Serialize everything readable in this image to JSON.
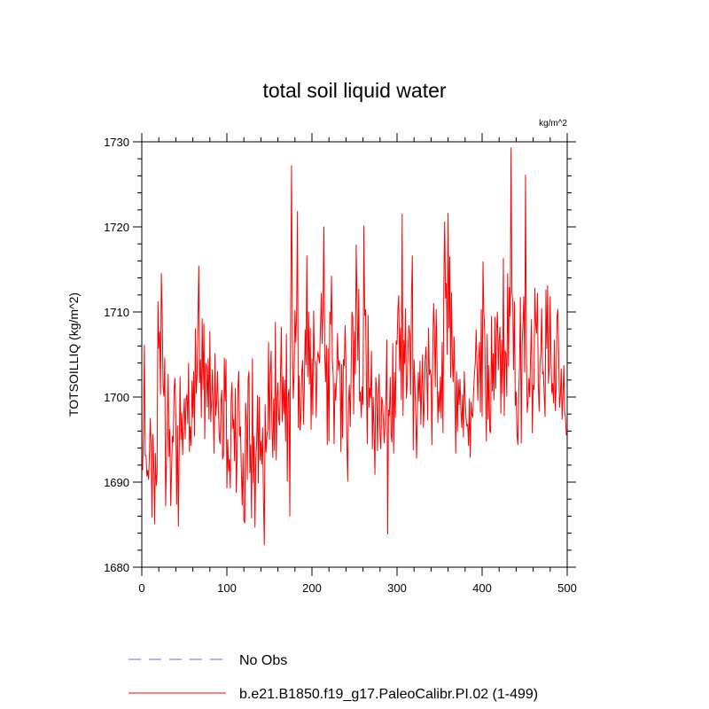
{
  "chart_data": {
    "type": "line",
    "title": "total soil liquid water",
    "units": "kg/m^2",
    "xlabel": "",
    "ylabel": "TOTSOILLIQ  (kg/m^2)",
    "xlim": [
      0,
      500
    ],
    "ylim": [
      1680,
      1730
    ],
    "x_ticks": [
      0,
      100,
      200,
      300,
      400,
      500
    ],
    "y_ticks": [
      1680,
      1690,
      1700,
      1710,
      1720,
      1730
    ],
    "grid": false,
    "series": [
      {
        "name": "No Obs",
        "color": "#6666ff",
        "style": "dashed",
        "x_start": 1,
        "values": []
      },
      {
        "name": "b.e21.B1850.f19_g17.PaleoCalibr.PI.02 (1-499)",
        "color": "#ff0000",
        "style": "solid",
        "x_start": 1,
        "values": [
          1691.4,
          1696.3,
          1706.1,
          1693.1,
          1693.1,
          1690.7,
          1691.4,
          1690.3,
          1693.4,
          1697.5,
          1694.2,
          1685.9,
          1695.6,
          1692.5,
          1685.1,
          1693.4,
          1689.6,
          1691.0,
          1711.2,
          1705.7,
          1707.7,
          1700.3,
          1714.5,
          1709.7,
          1701.2,
          1700.1,
          1704.6,
          1687.2,
          1692.3,
          1697.4,
          1702.7,
          1693.0,
          1696.2,
          1687.2,
          1691.4,
          1695.4,
          1694.7,
          1701.0,
          1702.2,
          1697.1,
          1687.4,
          1696.6,
          1684.8,
          1693.8,
          1702.4,
          1695.0,
          1698.1,
          1693.2,
          1697.3,
          1699.8,
          1695.1,
          1699.7,
          1700.3,
          1696.9,
          1704.0,
          1693.6,
          1696.5,
          1694.3,
          1701.9,
          1697.6,
          1703.0,
          1695.4,
          1708.0,
          1700.4,
          1702.6,
          1709.2,
          1715.4,
          1701.7,
          1704.4,
          1697.6,
          1709.2,
          1700.9,
          1708.6,
          1695.1,
          1704.0,
          1703.6,
          1698.8,
          1704.5,
          1697.4,
          1707.7,
          1697.1,
          1699.4,
          1703.2,
          1698.4,
          1693.4,
          1705.1,
          1697.8,
          1699.4,
          1703.0,
          1698.7,
          1695.4,
          1694.5,
          1699.5,
          1700.8,
          1692.7,
          1693.1,
          1704.6,
          1699.5,
          1704.4,
          1689.3,
          1695.0,
          1691.3,
          1692.7,
          1689.3,
          1699.7,
          1701.7,
          1696.3,
          1697.4,
          1692.5,
          1701.0,
          1688.8,
          1692.8,
          1701.2,
          1703.0,
          1695.4,
          1696.5,
          1691.3,
          1687.3,
          1693.4,
          1685.5,
          1685.2,
          1699.3,
          1697.2,
          1690.3,
          1702.2,
          1703.0,
          1691.1,
          1694.4,
          1685.8,
          1704.5,
          1689.9,
          1695.4,
          1684.7,
          1692.7,
          1694.6,
          1700.2,
          1689.9,
          1700.0,
          1692.6,
          1694.8,
          1692.1,
          1696.4,
          1688.0,
          1682.6,
          1699.1,
          1693.5,
          1695.2,
          1696.2,
          1706.4,
          1695.0,
          1702.8,
          1705.4,
          1696.4,
          1692.9,
          1699.8,
          1693.7,
          1708.8,
          1692.6,
          1699.9,
          1701.7,
          1697.4,
          1696.7,
          1702.3,
          1708.2,
          1697.1,
          1702.4,
          1698.0,
          1702.0,
          1694.8,
          1707.4,
          1690.1,
          1700.2,
          1700.9,
          1686.0,
          1710.3,
          1727.2,
          1706.6,
          1699.8,
          1702.6,
          1710.2,
          1706.4,
          1710.1,
          1721.8,
          1696.4,
          1702.5,
          1696.1,
          1697.6,
          1702.9,
          1704.3,
          1696.8,
          1700.9,
          1707.9,
          1703.8,
          1716.6,
          1702.4,
          1710.0,
          1701.5,
          1708.1,
          1696.2,
          1704.5,
          1697.9,
          1710.1,
          1704.3,
          1704.0,
          1697.6,
          1704.0,
          1705.3,
          1704.7,
          1704.0,
          1708.2,
          1712.2,
          1706.3,
          1710.3,
          1720.0,
          1705.1,
          1701.8,
          1706.1,
          1694.4,
          1705.7,
          1694.8,
          1710.0,
          1708.6,
          1714.2,
          1704.4,
          1702.6,
          1694.5,
          1701.6,
          1699.6,
          1702.3,
          1707.5,
          1703.1,
          1704.3,
          1703.6,
          1693.6,
          1703.8,
          1695.2,
          1704.4,
          1703.7,
          1708.4,
          1703.5,
          1695.0,
          1690.1,
          1699.4,
          1701.4,
          1696.5,
          1702.5,
          1710.0,
          1709.4,
          1698.0,
          1707.7,
          1702.7,
          1717.9,
          1710.9,
          1704.3,
          1712.7,
          1699.5,
          1700.6,
          1697.6,
          1701.2,
          1699.1,
          1720.1,
          1709.6,
          1710.3,
          1701.7,
          1694.5,
          1709.6,
          1698.8,
          1701.1,
          1699.9,
          1705.4,
          1693.9,
          1700.0,
          1696.1,
          1690.9,
          1702.3,
          1700.9,
          1693.7,
          1700.3,
          1702.7,
          1695.6,
          1693.9,
          1700.0,
          1699.4,
          1696.9,
          1694.6,
          1697.1,
          1700.0,
          1706.7,
          1683.9,
          1698.5,
          1697.8,
          1702.3,
          1695.6,
          1694.7,
          1706.3,
          1693.4,
          1702.9,
          1697.6,
          1706.6,
          1706.2,
          1710.3,
          1711.9,
          1703.1,
          1708.1,
          1699.7,
          1721.5,
          1697.8,
          1706.7,
          1703.9,
          1710.4,
          1699.9,
          1701.6,
          1706.3,
          1708.4,
          1707.3,
          1700.3,
          1712.1,
          1716.6,
          1693.8,
          1704.4,
          1701.5,
          1697.6,
          1692.8,
          1699.1,
          1702.9,
          1699.5,
          1704.2,
          1696.8,
          1701.1,
          1705.0,
          1696.4,
          1699.4,
          1704.2,
          1705.9,
          1702.8,
          1697.3,
          1708.1,
          1702.6,
          1703.2,
          1702.6,
          1694.4,
          1705.6,
          1711.0,
          1707.8,
          1701.2,
          1710.3,
          1704.3,
          1697.0,
          1700.6,
          1698.2,
          1702.4,
          1697.5,
          1706.4,
          1695.8,
          1713.2,
          1720.6,
          1711.6,
          1713.4,
          1705.0,
          1721.6,
          1708.1,
          1716.5,
          1702.3,
          1712.3,
          1704.5,
          1701.8,
          1707.1,
          1701.1,
          1693.4,
          1703.0,
          1696.0,
          1702.0,
          1699.1,
          1702.1,
          1698.5,
          1696.4,
          1700.3,
          1695.3,
          1703.0,
          1700.0,
          1697.6,
          1696.6,
          1696.8,
          1694.3,
          1699.8,
          1692.9,
          1699.4,
          1697.9,
          1697.6,
          1700.8,
          1702.7,
          1704.1,
          1707.9,
          1703.6,
          1699.6,
          1704.7,
          1706.4,
          1698.2,
          1710.3,
          1697.7,
          1715.9,
          1710.0,
          1707.8,
          1700.9,
          1694.8,
          1707.4,
          1697.4,
          1703.7,
          1696.0,
          1695.8,
          1709.5,
          1700.7,
          1705.1,
          1699.7,
          1709.4,
          1701.0,
          1707.9,
          1710.0,
          1703.2,
          1706.7,
          1708.2,
          1698.1,
          1706.7,
          1700.4,
          1716.3,
          1697.8,
          1705.5,
          1705.1,
          1700.1,
          1714.5,
          1703.6,
          1712.9,
          1709.5,
          1729.3,
          1712.3,
          1711.3,
          1703.2,
          1711.2,
          1699.0,
          1700.6,
          1695.6,
          1694.4,
          1700.2,
          1703.6,
          1711.7,
          1694.6,
          1706.1,
          1708.5,
          1711.8,
          1702.9,
          1726.1,
          1705.2,
          1698.2,
          1699.4,
          1702.2,
          1700.0,
          1705.1,
          1709.1,
          1695.8,
          1701.4,
          1700.9,
          1712.8,
          1708.6,
          1707.5,
          1712.2,
          1701.6,
          1698.3,
          1703.9,
          1705.0,
          1710.4,
          1702.7,
          1703.0,
          1700.1,
          1697.7,
          1712.6,
          1705.7,
          1713.1,
          1701.6,
          1703.7,
          1711.8,
          1703.9,
          1700.4,
          1701.6,
          1699.3,
          1706.7,
          1698.4,
          1701.1,
          1709.4,
          1710.3,
          1704.8,
          1698.8,
          1700.2,
          1703.3,
          1697.4,
          1700.2,
          1703.7,
          1698.3,
          1697.6,
          1695.5
        ]
      }
    ]
  }
}
